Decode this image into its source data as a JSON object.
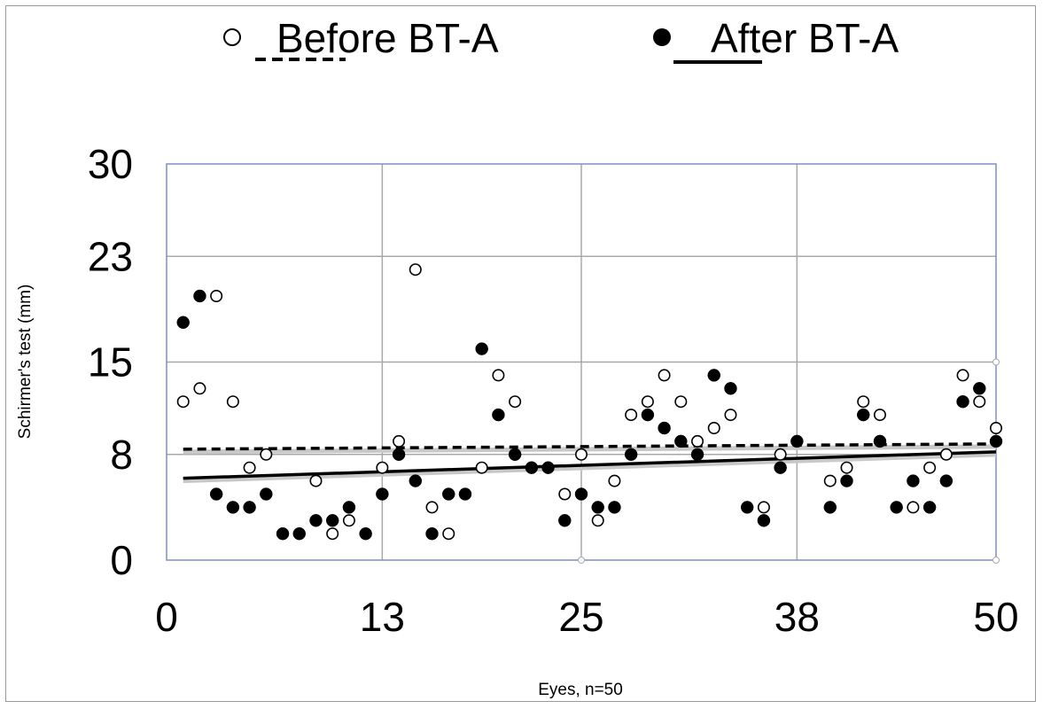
{
  "chart_data": {
    "type": "scatter",
    "title": "",
    "xlabel": "Eyes, n=50",
    "ylabel": "Schirmer's test (mm)",
    "xlim": [
      0,
      50
    ],
    "ylim": [
      0,
      30
    ],
    "x_ticks": [
      "0",
      "13",
      "25",
      "38",
      "50"
    ],
    "y_ticks": [
      "30",
      "23",
      "15",
      "8",
      "0"
    ],
    "grid": true,
    "legend_position": "top",
    "series": [
      {
        "name": "Before BT-A",
        "marker": "open-circle",
        "trendline_style": "dashed",
        "color": "#000000",
        "x": [
          1,
          2,
          3,
          4,
          5,
          6,
          9,
          10,
          11,
          13,
          14,
          15,
          16,
          17,
          19,
          20,
          21,
          24,
          25,
          26,
          27,
          28,
          29,
          30,
          31,
          32,
          33,
          34,
          36,
          37,
          40,
          41,
          42,
          43,
          45,
          46,
          47,
          48,
          49,
          50
        ],
        "y": [
          12,
          13,
          20,
          12,
          7,
          8,
          6,
          2,
          3,
          7,
          9,
          22,
          4,
          2,
          7,
          14,
          12,
          5,
          8,
          3,
          6,
          11,
          12,
          14,
          12,
          9,
          10,
          11,
          4,
          8,
          6,
          7,
          12,
          11,
          4,
          7,
          8,
          14,
          12,
          10
        ],
        "trendline": [
          8.4,
          8.8
        ]
      },
      {
        "name": "After BT-A",
        "marker": "filled-circle",
        "trendline_style": "solid",
        "color": "#000000",
        "x": [
          1,
          2,
          3,
          4,
          5,
          6,
          7,
          8,
          9,
          10,
          11,
          12,
          13,
          14,
          15,
          16,
          17,
          18,
          19,
          20,
          21,
          22,
          23,
          24,
          25,
          26,
          27,
          28,
          29,
          30,
          31,
          32,
          33,
          34,
          35,
          36,
          37,
          38,
          40,
          41,
          42,
          43,
          44,
          45,
          46,
          47,
          48,
          49,
          50
        ],
        "y": [
          18,
          20,
          5,
          4,
          4,
          5,
          2,
          2,
          3,
          3,
          4,
          2,
          5,
          8,
          6,
          2,
          5,
          5,
          16,
          11,
          8,
          7,
          7,
          3,
          5,
          4,
          4,
          8,
          11,
          10,
          9,
          8,
          14,
          13,
          4,
          3,
          7,
          9,
          4,
          6,
          11,
          9,
          4,
          6,
          4,
          6,
          12,
          13,
          9
        ],
        "trendline": [
          6.2,
          8.2
        ]
      }
    ]
  }
}
